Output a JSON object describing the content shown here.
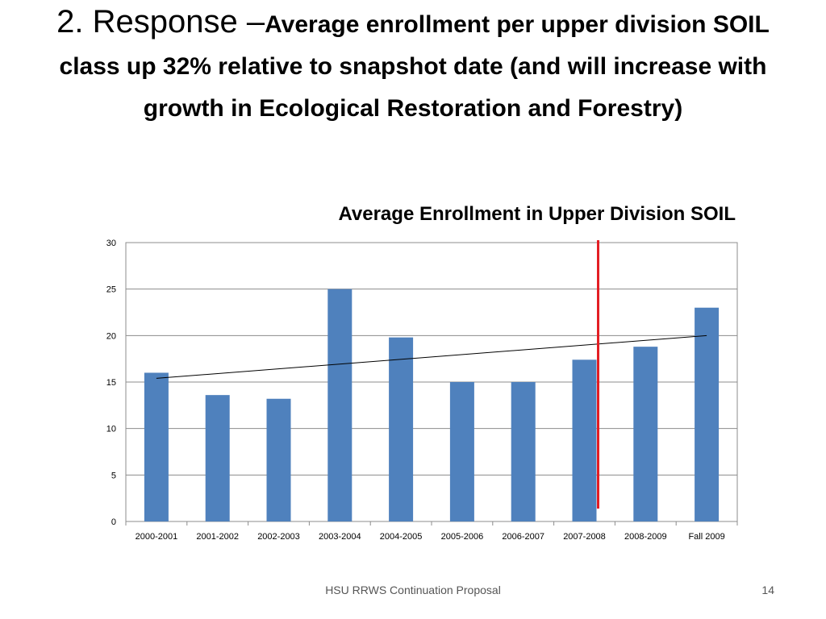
{
  "slide": {
    "title_main": "2. Response –",
    "title_rest": "Average enrollment per upper division SOIL class up 32% relative to snapshot date (and will increase with growth in Ecological Restoration and Forestry)",
    "footer": "HSU RRWS Continuation Proposal",
    "page_number": "14"
  },
  "chart_data": {
    "type": "bar",
    "title": "Average Enrollment in Upper Division SOIL",
    "categories": [
      "2000-2001",
      "2001-2002",
      "2002-2003",
      "2003-2004",
      "2004-2005",
      "2005-2006",
      "2006-2007",
      "2007-2008",
      "2008-2009",
      "Fall 2009"
    ],
    "values": [
      16,
      13.6,
      13.2,
      25,
      19.8,
      15,
      15,
      17.4,
      18.8,
      23
    ],
    "ylim": [
      0,
      30
    ],
    "yticks": [
      0,
      5,
      10,
      15,
      20,
      25,
      30
    ],
    "grid": true,
    "legend": "none",
    "trendline": {
      "type": "linear",
      "start": 15.4,
      "end": 20,
      "color": "#000000"
    },
    "snapshot_marker": {
      "between": [
        "2007-2008",
        "2008-2009"
      ],
      "color": "#e31e24"
    },
    "bar_color": "#4f81bd",
    "grid_color": "#8c8c8c"
  }
}
